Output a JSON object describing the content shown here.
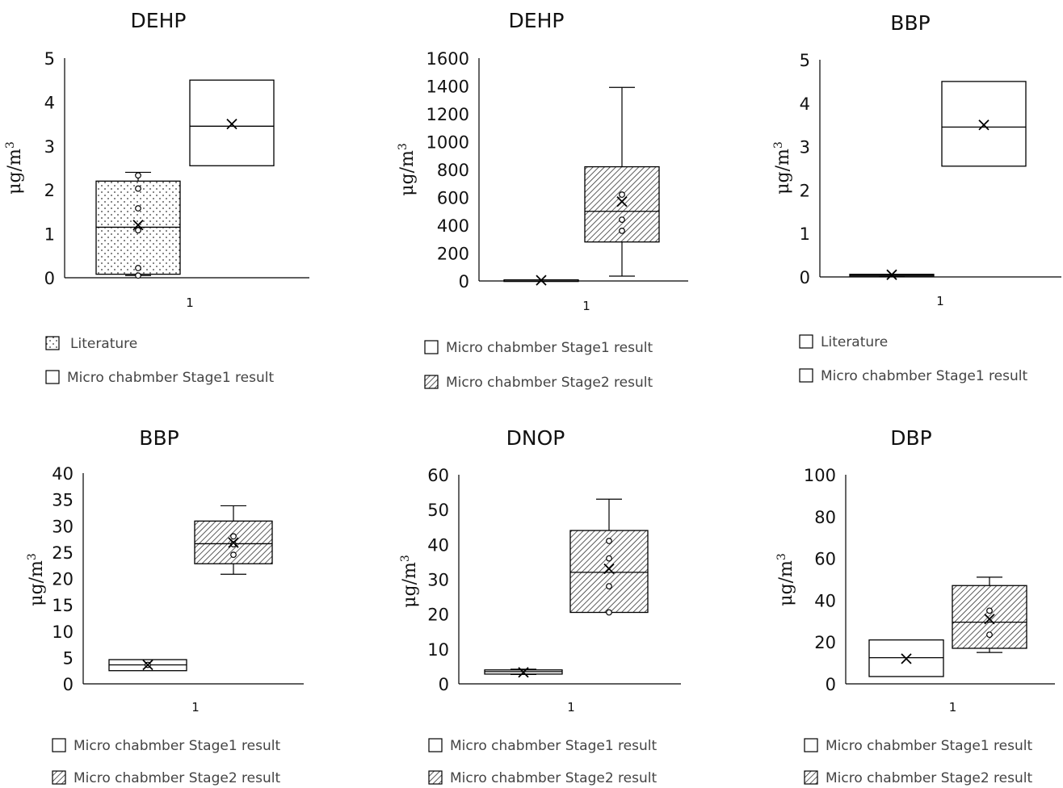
{
  "chart_data": [
    {
      "type": "box",
      "title": "DEHP",
      "ylabel": "μg/m",
      "ylabel_sup": "3",
      "ylim": [
        0,
        5
      ],
      "yticks": [
        "0",
        "1",
        "2",
        "3",
        "4",
        "5"
      ],
      "category": "1",
      "series": [
        {
          "name": "Literature",
          "pattern": "dots",
          "whisker_min": 0.05,
          "q1": 0.08,
          "median": 1.15,
          "q3": 2.2,
          "whisker_max": 2.4,
          "mean": 1.2,
          "points": [
            0.05,
            0.22,
            1.08,
            1.58,
            2.03,
            2.33
          ]
        },
        {
          "name": "Micro chabmber Stage1 result",
          "pattern": "none",
          "whisker_min": 2.55,
          "q1": 2.55,
          "median": 3.45,
          "q3": 4.5,
          "whisker_max": 4.5,
          "mean": 3.5,
          "points": []
        }
      ]
    },
    {
      "type": "box",
      "title": "DEHP",
      "ylabel": "μg/m",
      "ylabel_sup": "3",
      "ylim": [
        0,
        1600
      ],
      "yticks": [
        "0",
        "200",
        "400",
        "600",
        "800",
        "1000",
        "1200",
        "1400",
        "1600"
      ],
      "category": "1",
      "series": [
        {
          "name": "Micro chabmber Stage1 result",
          "pattern": "none",
          "whisker_min": 3,
          "q1": 3,
          "median": 5,
          "q3": 8,
          "whisker_max": 8,
          "mean": 5,
          "points": []
        },
        {
          "name": "Micro chabmber Stage2 result",
          "pattern": "hatch",
          "whisker_min": 35,
          "q1": 280,
          "median": 500,
          "q3": 820,
          "whisker_max": 1390,
          "mean": 570,
          "points": [
            360,
            440,
            620
          ]
        }
      ]
    },
    {
      "type": "box",
      "title": "BBP",
      "ylabel": "μg/m",
      "ylabel_sup": "3",
      "ylim": [
        0,
        5
      ],
      "yticks": [
        "0",
        "1",
        "2",
        "3",
        "4",
        "5"
      ],
      "category": "1",
      "series": [
        {
          "name": "Literature",
          "pattern": "none",
          "whisker_min": 0.02,
          "q1": 0.03,
          "median": 0.05,
          "q3": 0.06,
          "whisker_max": 0.06,
          "mean": 0.05,
          "points": []
        },
        {
          "name": "Micro chabmber Stage1 result",
          "pattern": "none",
          "whisker_min": 2.55,
          "q1": 2.55,
          "median": 3.45,
          "q3": 4.5,
          "whisker_max": 4.5,
          "mean": 3.5,
          "points": []
        }
      ]
    },
    {
      "type": "box",
      "title": "BBP",
      "ylabel": "μg/m",
      "ylabel_sup": "3",
      "ylim": [
        0,
        40
      ],
      "yticks": [
        "0",
        "5",
        "10",
        "15",
        "20",
        "25",
        "30",
        "35",
        "40"
      ],
      "category": "1",
      "series": [
        {
          "name": "Micro chabmber Stage1 result",
          "pattern": "none",
          "whisker_min": 2.5,
          "q1": 2.5,
          "median": 3.6,
          "q3": 4.6,
          "whisker_max": 4.6,
          "mean": 3.6,
          "points": [
            3.6
          ]
        },
        {
          "name": "Micro chabmber Stage2 result",
          "pattern": "hatch",
          "whisker_min": 20.8,
          "q1": 22.8,
          "median": 26.6,
          "q3": 30.9,
          "whisker_max": 33.8,
          "mean": 26.8,
          "points": [
            24.5,
            26.5,
            28
          ]
        }
      ]
    },
    {
      "type": "box",
      "title": "DNOP",
      "ylabel": "μg/m",
      "ylabel_sup": "3",
      "ylim": [
        0,
        60
      ],
      "yticks": [
        "0",
        "10",
        "20",
        "30",
        "40",
        "50",
        "60"
      ],
      "category": "1",
      "series": [
        {
          "name": "Micro chabmber Stage1 result",
          "pattern": "none",
          "whisker_min": 2.7,
          "q1": 2.8,
          "median": 3.5,
          "q3": 4,
          "whisker_max": 4.2,
          "mean": 3.3,
          "points": []
        },
        {
          "name": "Micro chabmber Stage2 result",
          "pattern": "hatch",
          "whisker_min": 20.5,
          "q1": 20.5,
          "median": 32,
          "q3": 44,
          "whisker_max": 53,
          "mean": 33,
          "points": [
            20.5,
            28,
            36,
            41
          ]
        }
      ]
    },
    {
      "type": "box",
      "title": "DBP",
      "ylabel": "μg/m",
      "ylabel_sup": "3",
      "ylim": [
        0,
        100
      ],
      "yticks": [
        "0",
        "20",
        "40",
        "60",
        "80",
        "100"
      ],
      "category": "1",
      "series": [
        {
          "name": "Micro chabmber Stage1 result",
          "pattern": "none",
          "whisker_min": 3.5,
          "q1": 3.5,
          "median": 12.5,
          "q3": 21,
          "whisker_max": 21,
          "mean": 12,
          "points": []
        },
        {
          "name": "Micro chabmber Stage2 result",
          "pattern": "hatch",
          "whisker_min": 15,
          "q1": 17,
          "median": 29.5,
          "q3": 47,
          "whisker_max": 51,
          "mean": 31,
          "points": [
            23.5,
            35
          ]
        }
      ]
    }
  ]
}
